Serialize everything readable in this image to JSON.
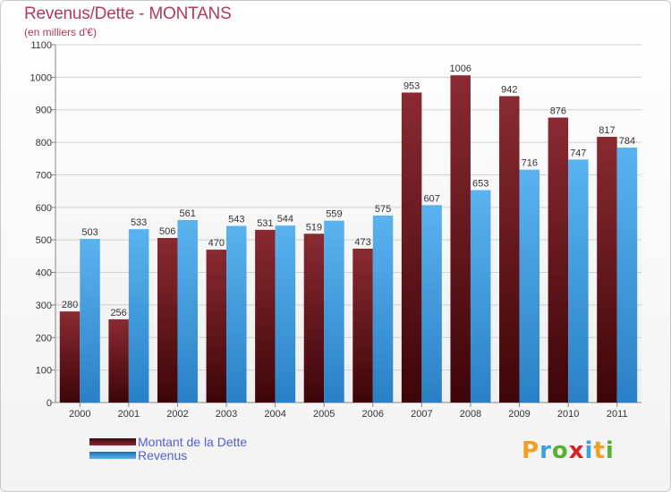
{
  "header": {
    "title": "Revenus/Dette - MONTANS",
    "subtitle": "(en milliers d'€)"
  },
  "chart_data": {
    "type": "bar",
    "categories": [
      "2000",
      "2001",
      "2002",
      "2003",
      "2004",
      "2005",
      "2006",
      "2007",
      "2008",
      "2009",
      "2010",
      "2011"
    ],
    "series": [
      {
        "name": "Montant de la Dette",
        "values": [
          280,
          256,
          506,
          470,
          531,
          519,
          473,
          953,
          1006,
          942,
          876,
          817
        ],
        "color": "#7a1f28"
      },
      {
        "name": "Revenus",
        "values": [
          503,
          533,
          561,
          543,
          544,
          559,
          575,
          607,
          653,
          716,
          747,
          784
        ],
        "color": "#4aa3e4"
      }
    ],
    "ylim": [
      0,
      1100
    ],
    "yticks": [
      0,
      100,
      200,
      300,
      400,
      500,
      600,
      700,
      800,
      900,
      1000,
      1100
    ],
    "grid": true,
    "legend_position": "bottom-left"
  },
  "logo": {
    "letters": [
      "P",
      "r",
      "o",
      "x",
      "i",
      "t",
      "i"
    ],
    "colors": [
      "#f0a020",
      "#3aa0e0",
      "#58b030",
      "#e02020",
      "#3aa0e0",
      "#f0a020",
      "#58b030"
    ]
  }
}
